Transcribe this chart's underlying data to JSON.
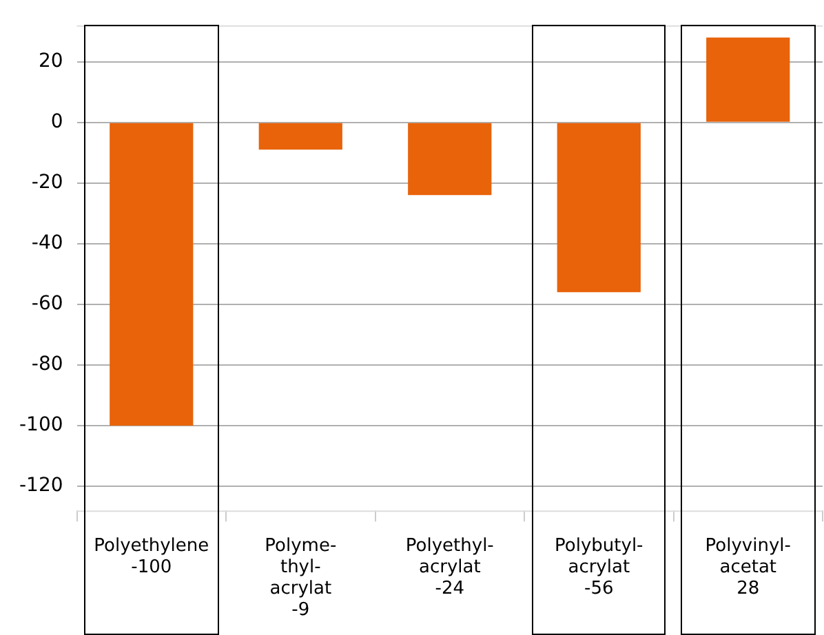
{
  "chart_data": {
    "type": "bar",
    "categories": [
      "Polyethylene -100",
      "Polyme-thyl-acrylat -9",
      "Polyethyl-acrylat -24",
      "Polybutyl-acrylat -56",
      "Polyvinyl-acetat 28"
    ],
    "values": [
      -100,
      -9,
      -24,
      -56,
      28
    ],
    "color": "#e8630a",
    "ylim": [
      -128,
      32
    ],
    "yticks": [
      -120,
      -100,
      -80,
      -60,
      -40,
      -20,
      0,
      20
    ],
    "grid": "y",
    "legend": false
  }
}
